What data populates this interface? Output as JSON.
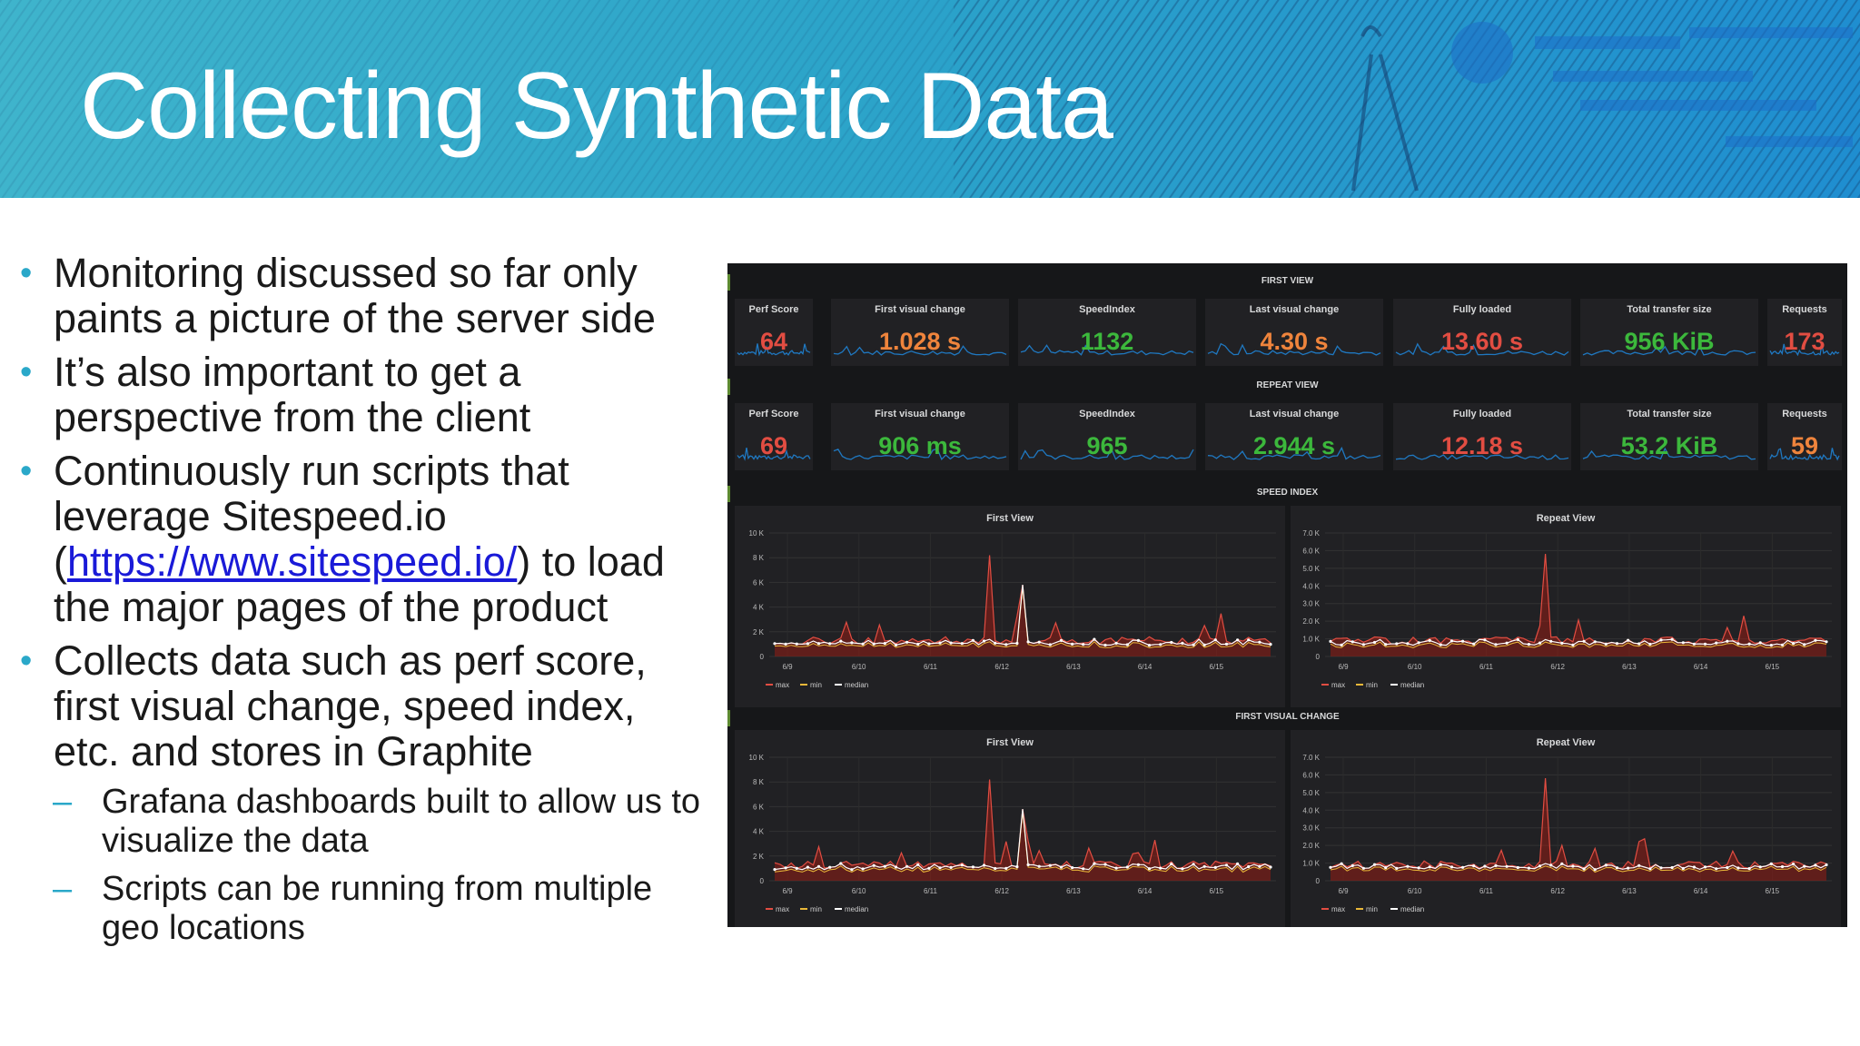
{
  "slide": {
    "title": "Collecting Synthetic Data",
    "bullets": [
      {
        "text": "Monitoring discussed so far only paints a picture of the server side"
      },
      {
        "text": "It’s also important to get a perspective from the client"
      },
      {
        "pre": "Continuously run scripts that leverage Sitespeed.io (",
        "link": "https://www.sitespeed.io/",
        "post": ") to load the major pages of the product"
      },
      {
        "text": "Collects data such as perf score, first visual change, speed index, etc. and stores in Graphite"
      }
    ],
    "sub_bullets": [
      "Grafana dashboards built to allow us to visualize the data",
      "Scripts can be running from multiple geo locations"
    ],
    "bullet_marker": "•",
    "sub_marker": "–"
  },
  "dashboard": {
    "colors": {
      "red": "#e24d42",
      "orange": "#ef843c",
      "green": "#3cb83c",
      "yellow": "#eab839",
      "panel": "#212124",
      "bg": "#161719",
      "spark": "#1f78c1"
    },
    "rows": [
      {
        "title": "FIRST VIEW",
        "stats": [
          {
            "label": "Perf Score",
            "value": "64",
            "color": "red"
          },
          {
            "label": "First visual change",
            "value": "1.028 s",
            "color": "orange"
          },
          {
            "label": "SpeedIndex",
            "value": "1132",
            "color": "green"
          },
          {
            "label": "Last visual change",
            "value": "4.30 s",
            "color": "orange"
          },
          {
            "label": "Fully loaded",
            "value": "13.60 s",
            "color": "red"
          },
          {
            "label": "Total transfer size",
            "value": "956 KiB",
            "color": "green"
          },
          {
            "label": "Requests",
            "value": "173",
            "color": "red"
          }
        ]
      },
      {
        "title": "REPEAT VIEW",
        "stats": [
          {
            "label": "Perf Score",
            "value": "69",
            "color": "red"
          },
          {
            "label": "First visual change",
            "value": "906 ms",
            "color": "green"
          },
          {
            "label": "SpeedIndex",
            "value": "965",
            "color": "green"
          },
          {
            "label": "Last visual change",
            "value": "2.944 s",
            "color": "green"
          },
          {
            "label": "Fully loaded",
            "value": "12.18 s",
            "color": "red"
          },
          {
            "label": "Total transfer size",
            "value": "53.2 KiB",
            "color": "green"
          },
          {
            "label": "Requests",
            "value": "59",
            "color": "orange"
          }
        ]
      }
    ],
    "graph_rows": [
      {
        "title": "SPEED INDEX",
        "panels": [
          {
            "title": "First View",
            "ymax": 10000,
            "yticks": [
              "10 K",
              "8 K",
              "6 K",
              "4 K",
              "2 K",
              "0"
            ],
            "spike_max": 0.82,
            "spike_med": 0.58
          },
          {
            "title": "Repeat View",
            "ymax": 7000,
            "yticks": [
              "7.0 K",
              "6.0 K",
              "5.0 K",
              "4.0 K",
              "3.0 K",
              "2.0 K",
              "1.0 K",
              "0"
            ],
            "spike_max": 0.83,
            "spike_med": 0.14
          }
        ]
      },
      {
        "title": "FIRST VISUAL CHANGE",
        "panels": [
          {
            "title": "First View",
            "ymax": 10000,
            "yticks": [
              "10 K",
              "8 K",
              "6 K",
              "4 K",
              "2 K",
              "0"
            ],
            "spike_max": 0.82,
            "spike_med": 0.58
          },
          {
            "title": "Repeat View",
            "ymax": 7000,
            "yticks": [
              "7.0 K",
              "6.0 K",
              "5.0 K",
              "4.0 K",
              "3.0 K",
              "2.0 K",
              "1.0 K",
              "0"
            ],
            "spike_max": 0.83,
            "spike_med": 0.14
          }
        ]
      }
    ],
    "xticks": [
      "6/9",
      "6/10",
      "6/11",
      "6/12",
      "6/13",
      "6/14",
      "6/15"
    ],
    "legend": [
      "max",
      "min",
      "median"
    ]
  }
}
